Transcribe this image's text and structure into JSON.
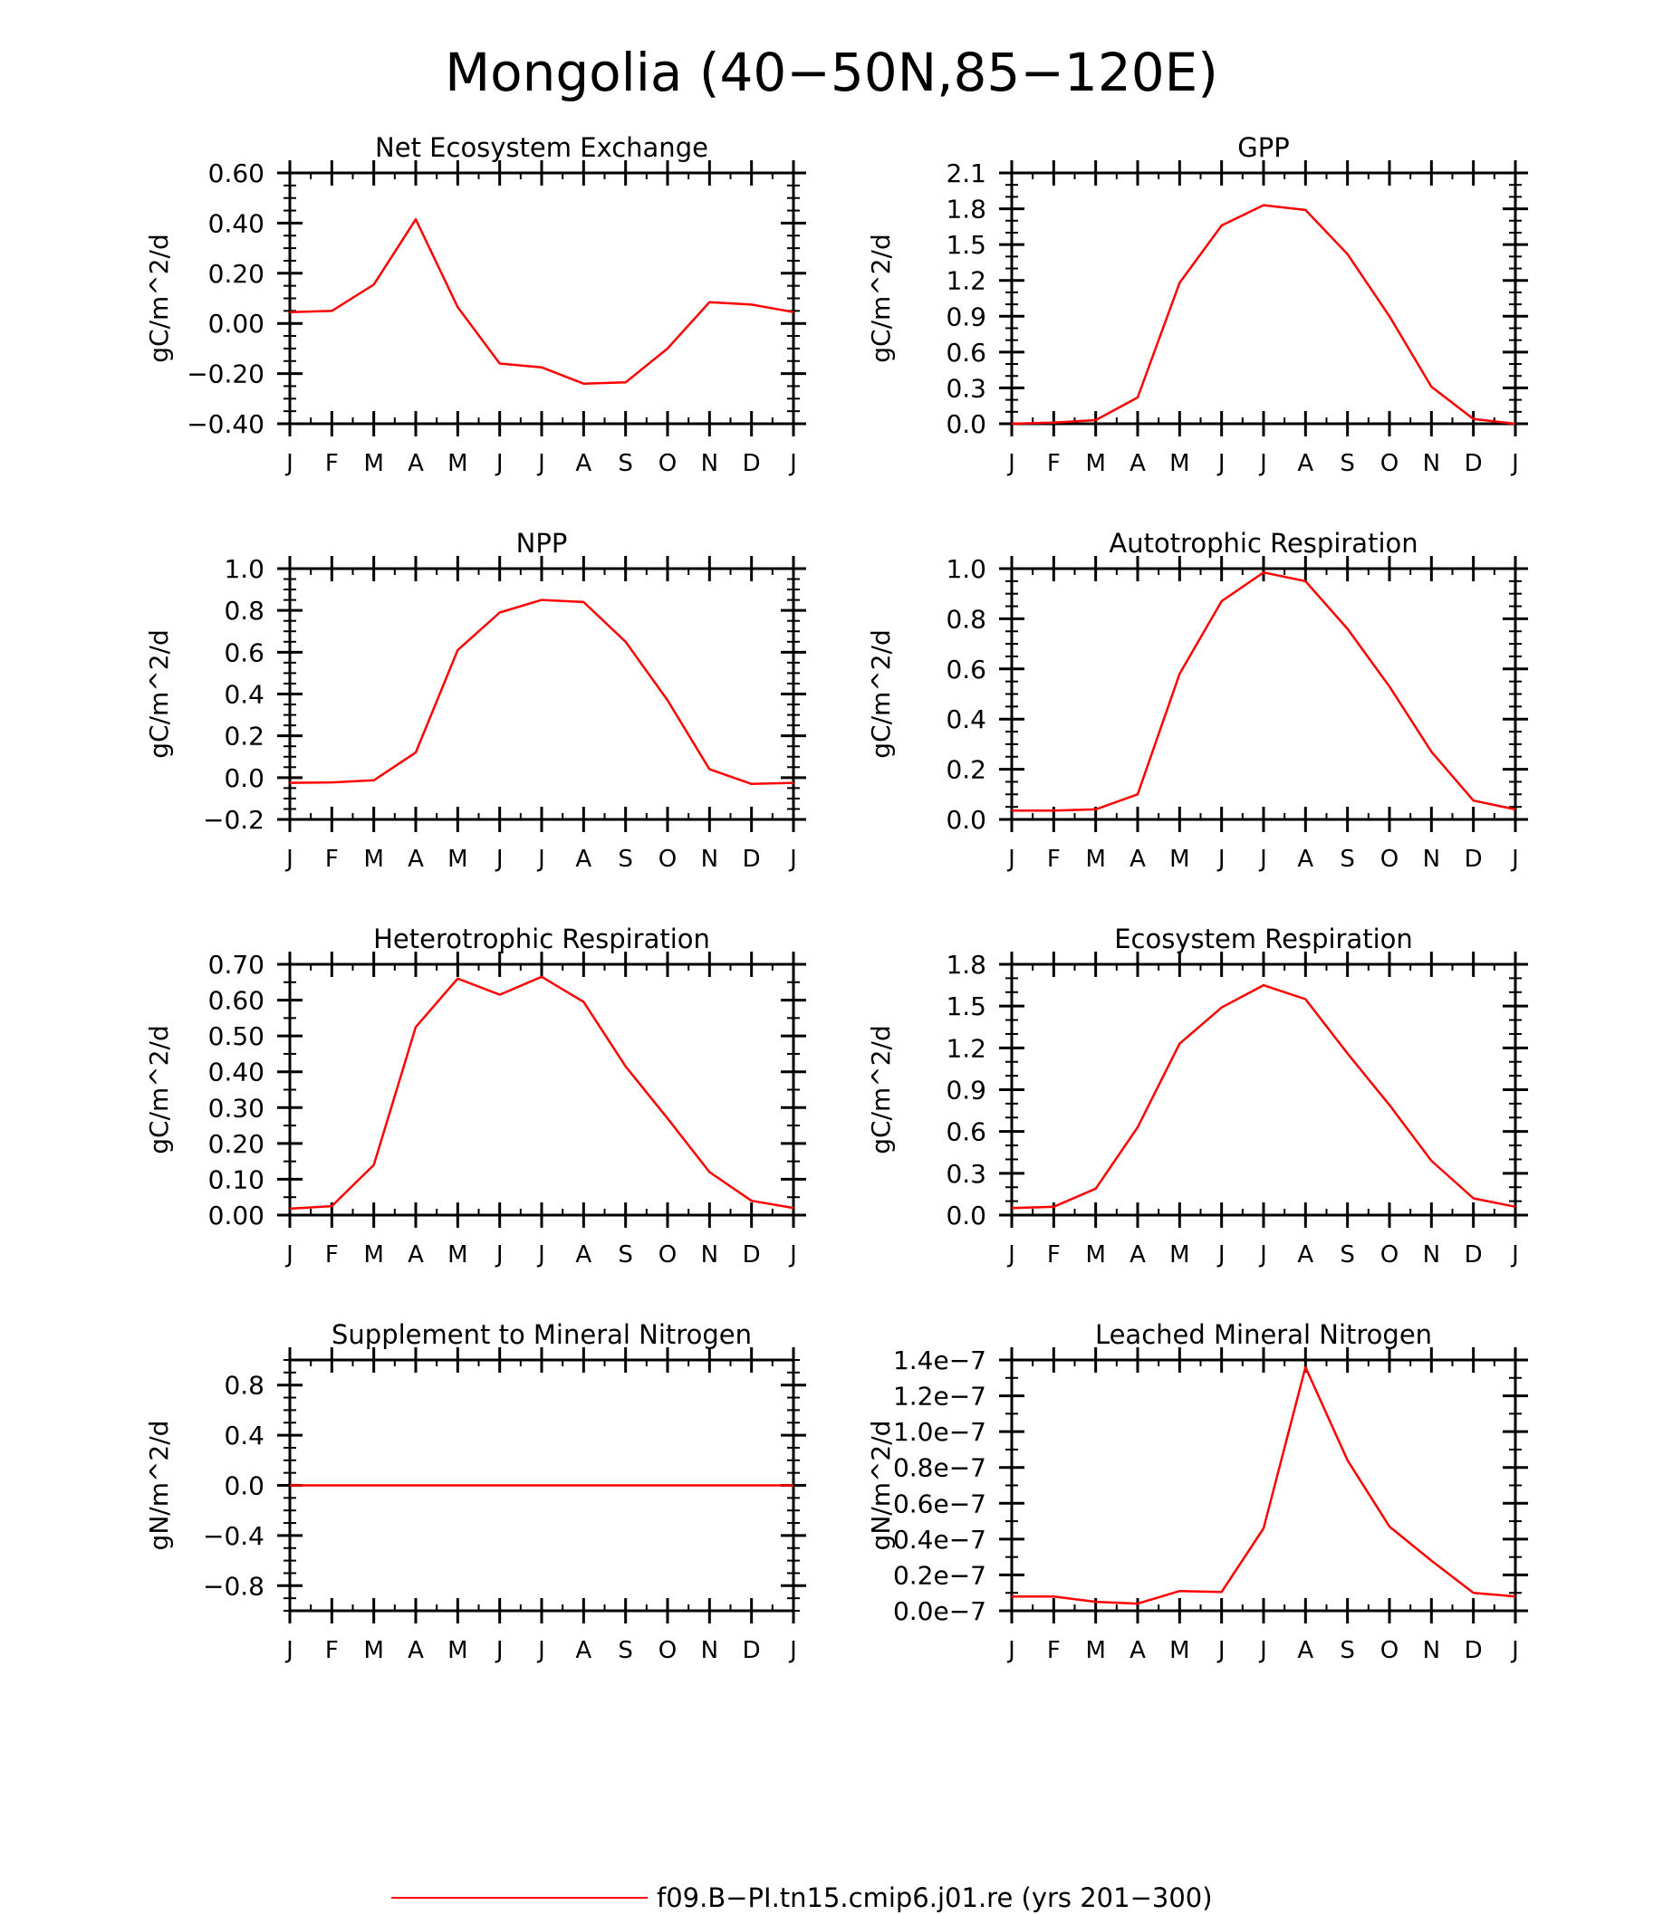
{
  "title": "Mongolia (40−50N,85−120E)",
  "legend": {
    "label": "f09.B−PI.tn15.cmip6.j01.re (yrs 201−300)",
    "color": "#ff0000",
    "placement": "bottom-center"
  },
  "line_color": "#ff0000",
  "months": [
    "J",
    "F",
    "M",
    "A",
    "M",
    "J",
    "J",
    "A",
    "S",
    "O",
    "N",
    "D",
    "J"
  ],
  "chart_data": [
    {
      "type": "line",
      "title": "Net Ecosystem Exchange",
      "ylabel": "gC/m^2/d",
      "ylim": [
        -0.4,
        0.6
      ],
      "yticks": [
        -0.4,
        -0.2,
        0.0,
        0.2,
        0.4,
        0.6
      ],
      "ytick_labels": [
        "−0.40",
        "−0.20",
        "0.00",
        "0.20",
        "0.40",
        "0.60"
      ],
      "y_minor_step": 0.05,
      "categories": [
        "J",
        "F",
        "M",
        "A",
        "M",
        "J",
        "J",
        "A",
        "S",
        "O",
        "N",
        "D",
        "J"
      ],
      "series": [
        {
          "values": [
            0.045,
            0.05,
            0.155,
            0.415,
            0.065,
            -0.16,
            -0.175,
            -0.24,
            -0.235,
            -0.1,
            0.085,
            0.075,
            0.045
          ]
        }
      ]
    },
    {
      "type": "line",
      "title": "GPP",
      "ylabel": "gC/m^2/d",
      "ylim": [
        0.0,
        2.1
      ],
      "yticks": [
        0.0,
        0.3,
        0.6,
        0.9,
        1.2,
        1.5,
        1.8,
        2.1
      ],
      "ytick_labels": [
        "0.0",
        "0.3",
        "0.6",
        "0.9",
        "1.2",
        "1.5",
        "1.8",
        "2.1"
      ],
      "y_minor_step": 0.1,
      "categories": [
        "J",
        "F",
        "M",
        "A",
        "M",
        "J",
        "J",
        "A",
        "S",
        "O",
        "N",
        "D",
        "J"
      ],
      "series": [
        {
          "values": [
            0.0,
            0.01,
            0.03,
            0.22,
            1.18,
            1.66,
            1.83,
            1.79,
            1.42,
            0.9,
            0.31,
            0.04,
            0.0
          ]
        }
      ]
    },
    {
      "type": "line",
      "title": "NPP",
      "ylabel": "gC/m^2/d",
      "ylim": [
        -0.2,
        1.0
      ],
      "yticks": [
        -0.2,
        0.0,
        0.2,
        0.4,
        0.6,
        0.8,
        1.0
      ],
      "ytick_labels": [
        "−0.2",
        "0.0",
        "0.2",
        "0.4",
        "0.6",
        "0.8",
        "1.0"
      ],
      "y_minor_step": 0.05,
      "categories": [
        "J",
        "F",
        "M",
        "A",
        "M",
        "J",
        "J",
        "A",
        "S",
        "O",
        "N",
        "D",
        "J"
      ],
      "series": [
        {
          "values": [
            -0.025,
            -0.023,
            -0.013,
            0.12,
            0.61,
            0.79,
            0.85,
            0.84,
            0.65,
            0.37,
            0.04,
            -0.03,
            -0.025
          ]
        }
      ]
    },
    {
      "type": "line",
      "title": "Autotrophic Respiration",
      "ylabel": "gC/m^2/d",
      "ylim": [
        0.0,
        1.0
      ],
      "yticks": [
        0.0,
        0.2,
        0.4,
        0.6,
        0.8,
        1.0
      ],
      "ytick_labels": [
        "0.0",
        "0.2",
        "0.4",
        "0.6",
        "0.8",
        "1.0"
      ],
      "y_minor_step": 0.05,
      "categories": [
        "J",
        "F",
        "M",
        "A",
        "M",
        "J",
        "J",
        "A",
        "S",
        "O",
        "N",
        "D",
        "J"
      ],
      "series": [
        {
          "values": [
            0.035,
            0.035,
            0.04,
            0.1,
            0.58,
            0.87,
            0.985,
            0.95,
            0.76,
            0.53,
            0.27,
            0.075,
            0.04
          ]
        }
      ]
    },
    {
      "type": "line",
      "title": "Heterotrophic Respiration",
      "ylabel": "gC/m^2/d",
      "ylim": [
        0.0,
        0.7
      ],
      "yticks": [
        0.0,
        0.1,
        0.2,
        0.3,
        0.4,
        0.5,
        0.6,
        0.7
      ],
      "ytick_labels": [
        "0.00",
        "0.10",
        "0.20",
        "0.30",
        "0.40",
        "0.50",
        "0.60",
        "0.70"
      ],
      "y_minor_step": 0.05,
      "categories": [
        "J",
        "F",
        "M",
        "A",
        "M",
        "J",
        "J",
        "A",
        "S",
        "O",
        "N",
        "D",
        "J"
      ],
      "series": [
        {
          "values": [
            0.018,
            0.025,
            0.14,
            0.525,
            0.66,
            0.615,
            0.665,
            0.595,
            0.415,
            0.27,
            0.12,
            0.04,
            0.02
          ]
        }
      ]
    },
    {
      "type": "line",
      "title": "Ecosystem Respiration",
      "ylabel": "gC/m^2/d",
      "ylim": [
        0.0,
        1.8
      ],
      "yticks": [
        0.0,
        0.3,
        0.6,
        0.9,
        1.2,
        1.5,
        1.8
      ],
      "ytick_labels": [
        "0.0",
        "0.3",
        "0.6",
        "0.9",
        "1.2",
        "1.5",
        "1.8"
      ],
      "y_minor_step": 0.1,
      "categories": [
        "J",
        "F",
        "M",
        "A",
        "M",
        "J",
        "J",
        "A",
        "S",
        "O",
        "N",
        "D",
        "J"
      ],
      "series": [
        {
          "values": [
            0.05,
            0.06,
            0.19,
            0.63,
            1.23,
            1.49,
            1.65,
            1.55,
            1.16,
            0.79,
            0.39,
            0.12,
            0.06
          ]
        }
      ]
    },
    {
      "type": "line",
      "title": "Supplement to Mineral Nitrogen",
      "ylabel": "gN/m^2/d",
      "ylim": [
        -1.0,
        1.0
      ],
      "yticks": [
        -0.8,
        -0.4,
        0.0,
        0.4,
        0.8
      ],
      "ytick_labels": [
        "−0.8",
        "−0.4",
        "0.0",
        "0.4",
        "0.8"
      ],
      "y_minor_step": 0.1,
      "categories": [
        "J",
        "F",
        "M",
        "A",
        "M",
        "J",
        "J",
        "A",
        "S",
        "O",
        "N",
        "D",
        "J"
      ],
      "series": [
        {
          "values": [
            0,
            0,
            0,
            0,
            0,
            0,
            0,
            0,
            0,
            0,
            0,
            0,
            0
          ]
        }
      ]
    },
    {
      "type": "line",
      "title": "Leached Mineral Nitrogen",
      "ylabel": "gN/m^2/d",
      "ylim": [
        0.0,
        1.4e-07
      ],
      "yticks": [
        0.0,
        2e-08,
        4e-08,
        6e-08,
        8e-08,
        1e-07,
        1.2e-07,
        1.4e-07
      ],
      "ytick_labels": [
        "0.0e−7",
        "0.2e−7",
        "0.4e−7",
        "0.6e−7",
        "0.8e−7",
        "1.0e−7",
        "1.2e−7",
        "1.4e−7"
      ],
      "y_minor_step": 1e-08,
      "categories": [
        "J",
        "F",
        "M",
        "A",
        "M",
        "J",
        "J",
        "A",
        "S",
        "O",
        "N",
        "D",
        "J"
      ],
      "series": [
        {
          "values": [
            8e-09,
            8e-09,
            5e-09,
            4e-09,
            1.1e-08,
            1.05e-08,
            4.6e-08,
            1.36e-07,
            8.4e-08,
            4.7e-08,
            2.8e-08,
            1e-08,
            8e-09
          ]
        }
      ]
    }
  ]
}
